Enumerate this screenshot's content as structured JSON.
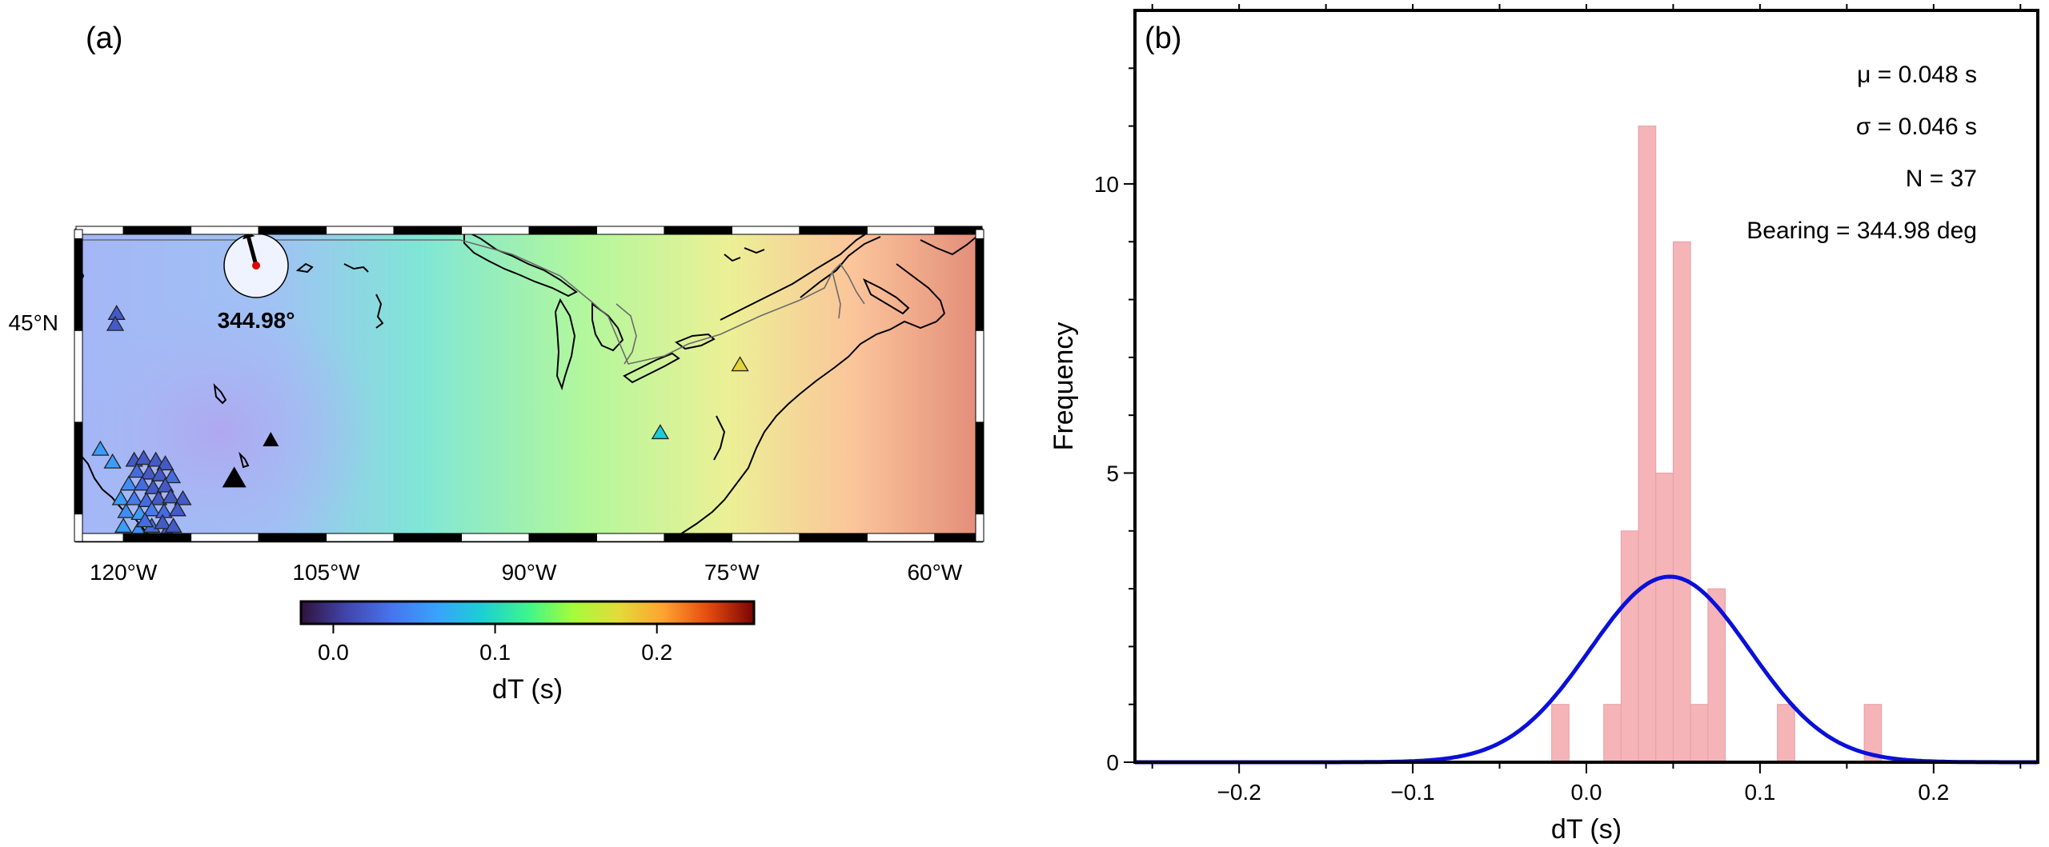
{
  "panel_a": {
    "label": "(a)",
    "lat_label": "45°N",
    "lon_ticks": [
      {
        "lon": -120,
        "label": "120°W"
      },
      {
        "lon": -105,
        "label": "105°W"
      },
      {
        "lon": -90,
        "label": "90°W"
      },
      {
        "lon": -75,
        "label": "75°W"
      },
      {
        "lon": -60,
        "label": "60°W"
      }
    ],
    "lon_range": [
      -123.5,
      -56.5
    ],
    "lat_range": [
      33.5,
      50.5
    ],
    "bearing_label": "344.98°",
    "colorbar": {
      "title": "dT (s)",
      "range": [
        -0.02,
        0.26
      ],
      "ticks": [
        {
          "value": 0.0,
          "label": "0.0"
        },
        {
          "value": 0.1,
          "label": "0.1"
        },
        {
          "value": 0.2,
          "label": "0.2"
        }
      ]
    },
    "stations": [
      {
        "lon": -120.5,
        "lat": 45.9,
        "dT": 0.02
      },
      {
        "lon": -120.6,
        "lat": 45.3,
        "dT": 0.02
      },
      {
        "lon": -121.7,
        "lat": 38.5,
        "dT": 0.06
      },
      {
        "lon": -120.8,
        "lat": 37.8,
        "dT": 0.06
      },
      {
        "lon": -119.2,
        "lat": 37.9,
        "dT": 0.02
      },
      {
        "lon": -118.5,
        "lat": 38.0,
        "dT": 0.02
      },
      {
        "lon": -117.6,
        "lat": 37.9,
        "dT": 0.02
      },
      {
        "lon": -116.9,
        "lat": 37.7,
        "dT": 0.02
      },
      {
        "lon": -119.0,
        "lat": 37.3,
        "dT": 0.03
      },
      {
        "lon": -118.1,
        "lat": 37.2,
        "dT": 0.02
      },
      {
        "lon": -117.3,
        "lat": 37.1,
        "dT": 0.02
      },
      {
        "lon": -116.4,
        "lat": 37.0,
        "dT": 0.03
      },
      {
        "lon": -119.6,
        "lat": 36.6,
        "dT": 0.05
      },
      {
        "lon": -118.6,
        "lat": 36.6,
        "dT": 0.03
      },
      {
        "lon": -117.8,
        "lat": 36.4,
        "dT": 0.02
      },
      {
        "lon": -116.9,
        "lat": 36.5,
        "dT": 0.02
      },
      {
        "lon": -120.2,
        "lat": 35.8,
        "dT": 0.06
      },
      {
        "lon": -119.2,
        "lat": 35.8,
        "dT": 0.04
      },
      {
        "lon": -118.3,
        "lat": 35.7,
        "dT": 0.03
      },
      {
        "lon": -117.4,
        "lat": 35.8,
        "dT": 0.02
      },
      {
        "lon": -116.5,
        "lat": 35.9,
        "dT": 0.02
      },
      {
        "lon": -115.6,
        "lat": 35.8,
        "dT": 0.02
      },
      {
        "lon": -119.8,
        "lat": 35.1,
        "dT": 0.05
      },
      {
        "lon": -118.8,
        "lat": 35.0,
        "dT": 0.06
      },
      {
        "lon": -117.9,
        "lat": 35.2,
        "dT": 0.04
      },
      {
        "lon": -117.0,
        "lat": 35.1,
        "dT": 0.03
      },
      {
        "lon": -116.0,
        "lat": 35.2,
        "dT": 0.02
      },
      {
        "lon": -120.0,
        "lat": 34.3,
        "dT": 0.06
      },
      {
        "lon": -118.9,
        "lat": 34.1,
        "dT": 0.05
      },
      {
        "lon": -117.9,
        "lat": 34.3,
        "dT": 0.03
      },
      {
        "lon": -116.8,
        "lat": 34.0,
        "dT": 0.02
      },
      {
        "lon": -118.4,
        "lat": 34.6,
        "dT": 0.03
      },
      {
        "lon": -117.1,
        "lat": 34.5,
        "dT": 0.02
      },
      {
        "lon": -116.3,
        "lat": 34.3,
        "dT": 0.02
      },
      {
        "lon": -80.3,
        "lat": 39.4,
        "dT": 0.09
      },
      {
        "lon": -74.4,
        "lat": 43.1,
        "dT": 0.18
      }
    ],
    "black_markers": [
      {
        "lon": -109.1,
        "lat": 39.0,
        "size": "small"
      },
      {
        "lon": -111.8,
        "lat": 36.9,
        "size": "large"
      }
    ]
  },
  "chart_data": {
    "type": "bar",
    "title": "",
    "xlabel": "dT (s)",
    "ylabel": "Frequency",
    "xlim": [
      -0.26,
      0.26
    ],
    "ylim": [
      0,
      13
    ],
    "xticks": [
      {
        "value": -0.2,
        "label": "−0.2"
      },
      {
        "value": -0.1,
        "label": "−0.1"
      },
      {
        "value": 0.0,
        "label": "0.0"
      },
      {
        "value": 0.1,
        "label": "0.1"
      },
      {
        "value": 0.2,
        "label": "0.2"
      }
    ],
    "yticks": [
      {
        "value": 0,
        "label": "0"
      },
      {
        "value": 5,
        "label": "5"
      },
      {
        "value": 10,
        "label": "10"
      }
    ],
    "bin_width": 0.01,
    "bins": [
      {
        "start": -0.02,
        "count": 1
      },
      {
        "start": 0.01,
        "count": 1
      },
      {
        "start": 0.02,
        "count": 4
      },
      {
        "start": 0.03,
        "count": 11
      },
      {
        "start": 0.04,
        "count": 5
      },
      {
        "start": 0.05,
        "count": 9
      },
      {
        "start": 0.06,
        "count": 1
      },
      {
        "start": 0.07,
        "count": 3
      },
      {
        "start": 0.11,
        "count": 1
      },
      {
        "start": 0.16,
        "count": 1
      }
    ],
    "fit": {
      "mu": 0.048,
      "sigma": 0.046,
      "n": 37
    },
    "annotations": [
      "μ = 0.048 s",
      "σ = 0.046 s",
      "N = 37",
      "Bearing = 344.98 deg"
    ],
    "colors": {
      "bars": "#f4b4b8",
      "bar_edge": "#e8a0a6",
      "fit": "#0a10d8"
    },
    "legend": "none",
    "grid": false
  },
  "panel_b": {
    "label": "(b)"
  }
}
